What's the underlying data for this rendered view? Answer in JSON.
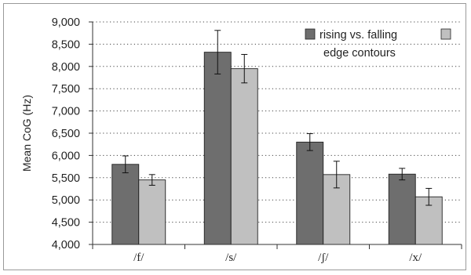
{
  "chart_data": {
    "type": "bar",
    "categories": [
      "/f/",
      "/s/",
      "/ʃ/",
      "/x/"
    ],
    "ylabel": "Mean CoG (Hz)",
    "xlabel": "",
    "ylim": [
      4000,
      9000
    ],
    "yticks": [
      4000,
      4500,
      5000,
      5500,
      6000,
      6500,
      7000,
      7500,
      8000,
      8500,
      9000
    ],
    "ytick_labels": [
      "4,000",
      "4,500",
      "5,000",
      "5,500",
      "6,000",
      "6,500",
      "7,000",
      "7,500",
      "8,000",
      "8,500",
      "9,000"
    ],
    "grid": "horizontal dotted",
    "legend_position": "top-right",
    "legend_label_line1": "rising vs. falling",
    "legend_label_line2": "edge contours",
    "series": [
      {
        "values": [
          5800,
          8320,
          6300,
          5580
        ],
        "error": [
          190,
          490,
          190,
          130
        ],
        "color": "#6e6e6e"
      },
      {
        "values": [
          5450,
          7950,
          5570,
          5070
        ],
        "error": [
          120,
          320,
          300,
          190
        ],
        "color": "#c0c0c0"
      }
    ]
  }
}
